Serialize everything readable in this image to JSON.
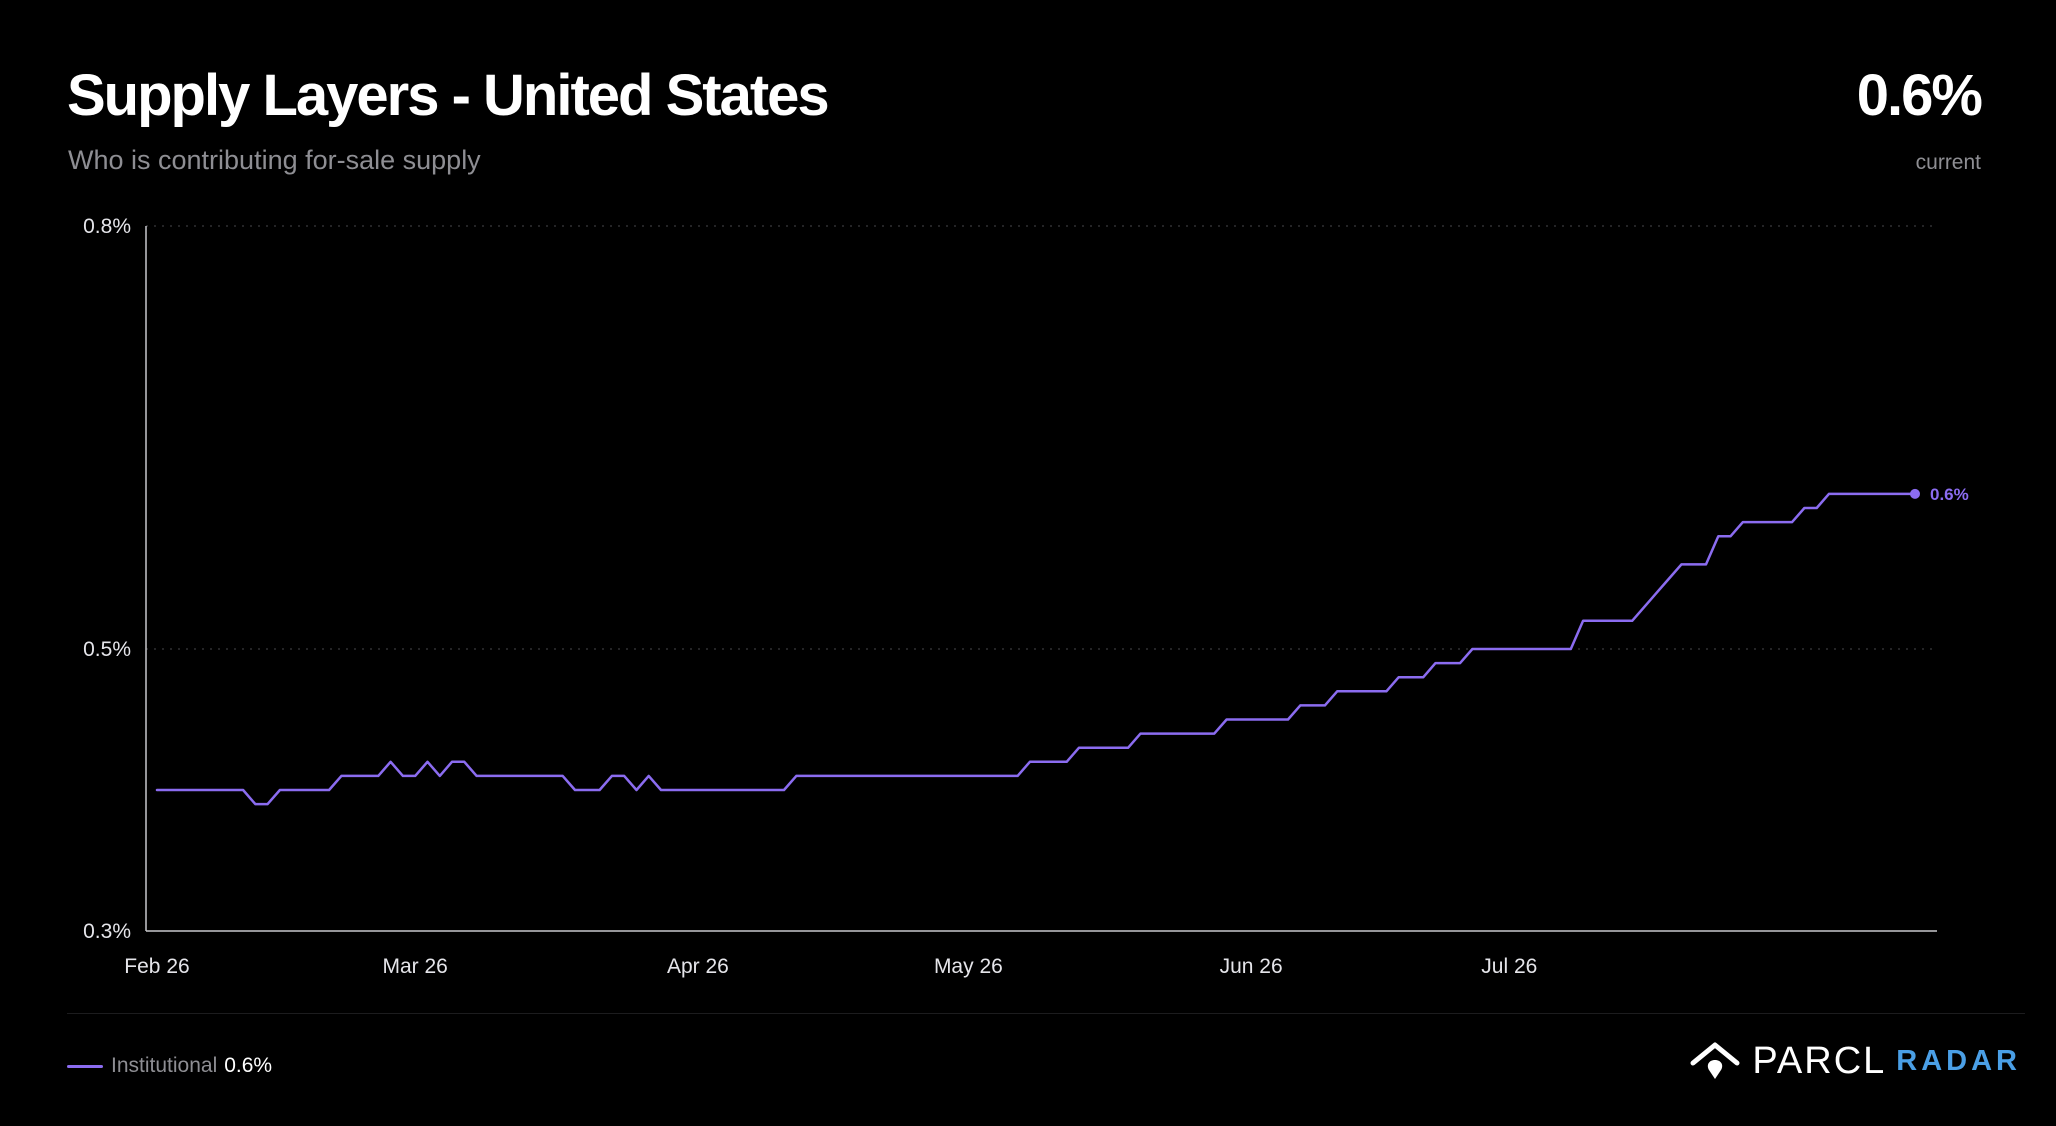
{
  "header": {
    "title": "Supply Layers - United States",
    "subtitle": "Who is contributing for-sale supply",
    "current_value": "0.6%",
    "current_label": "current"
  },
  "legend": {
    "series_name": "Institutional",
    "series_value": "0.6%"
  },
  "brand": {
    "name": "PARCL",
    "product": "RADAR",
    "product_color": "#4a9fe6"
  },
  "colors": {
    "background": "#000000",
    "series": "#8b6cf0",
    "grid": "#3a3a3c",
    "axis": "#c7c7cc"
  },
  "chart_data": {
    "type": "line",
    "y_ticks": [
      {
        "value": 0.3,
        "label": "0.3%"
      },
      {
        "value": 0.5,
        "label": "0.5%"
      },
      {
        "value": 0.8,
        "label": "0.8%"
      }
    ],
    "ylim": [
      0.3,
      0.8
    ],
    "x_ticks": [
      {
        "index": 0,
        "label": "Feb 26"
      },
      {
        "index": 21,
        "label": "Mar 26"
      },
      {
        "index": 44,
        "label": "Apr 26"
      },
      {
        "index": 66,
        "label": "May 26"
      },
      {
        "index": 89,
        "label": "Jun 26"
      },
      {
        "index": 110,
        "label": "Jul 26"
      }
    ],
    "grid": "horizontal dotted",
    "legend": "bottom-left",
    "end_label": "0.6%",
    "series": [
      {
        "name": "Institutional",
        "color": "#8b6cf0",
        "values": [
          0.4,
          0.4,
          0.4,
          0.4,
          0.4,
          0.4,
          0.4,
          0.4,
          0.39,
          0.39,
          0.4,
          0.4,
          0.4,
          0.4,
          0.4,
          0.41,
          0.41,
          0.41,
          0.41,
          0.42,
          0.41,
          0.41,
          0.42,
          0.41,
          0.42,
          0.42,
          0.41,
          0.41,
          0.41,
          0.41,
          0.41,
          0.41,
          0.41,
          0.41,
          0.4,
          0.4,
          0.4,
          0.41,
          0.41,
          0.4,
          0.41,
          0.4,
          0.4,
          0.4,
          0.4,
          0.4,
          0.4,
          0.4,
          0.4,
          0.4,
          0.4,
          0.4,
          0.41,
          0.41,
          0.41,
          0.41,
          0.41,
          0.41,
          0.41,
          0.41,
          0.41,
          0.41,
          0.41,
          0.41,
          0.41,
          0.41,
          0.41,
          0.41,
          0.41,
          0.41,
          0.41,
          0.42,
          0.42,
          0.42,
          0.42,
          0.43,
          0.43,
          0.43,
          0.43,
          0.43,
          0.44,
          0.44,
          0.44,
          0.44,
          0.44,
          0.44,
          0.44,
          0.45,
          0.45,
          0.45,
          0.45,
          0.45,
          0.45,
          0.46,
          0.46,
          0.46,
          0.47,
          0.47,
          0.47,
          0.47,
          0.47,
          0.48,
          0.48,
          0.48,
          0.49,
          0.49,
          0.49,
          0.5,
          0.5,
          0.5,
          0.5,
          0.5,
          0.5,
          0.5,
          0.5,
          0.5,
          0.52,
          0.52,
          0.52,
          0.52,
          0.52,
          0.53,
          0.54,
          0.55,
          0.56,
          0.56,
          0.56,
          0.58,
          0.58,
          0.59,
          0.59,
          0.59,
          0.59,
          0.59,
          0.6,
          0.6,
          0.61,
          0.61,
          0.61,
          0.61,
          0.61,
          0.61,
          0.61,
          0.61
        ]
      }
    ]
  }
}
